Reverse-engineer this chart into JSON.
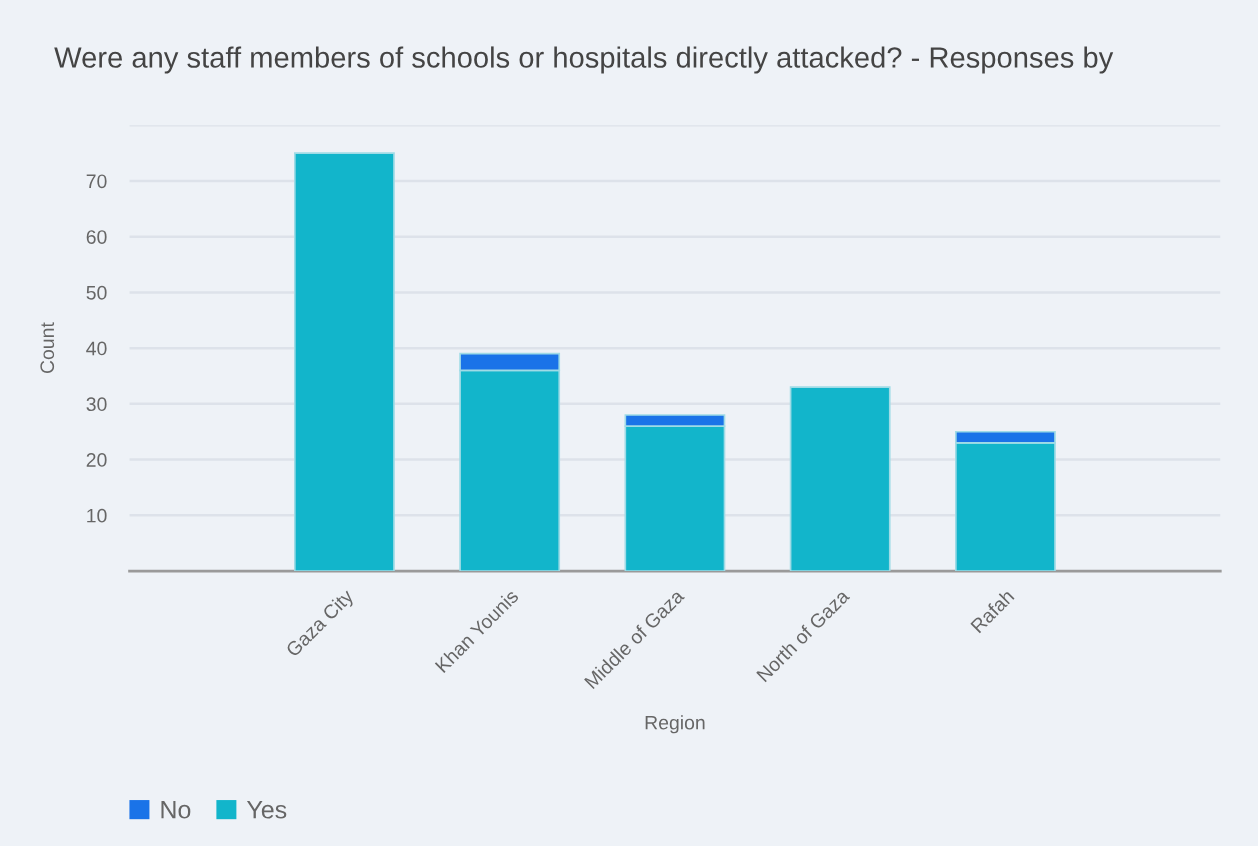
{
  "chart_data": {
    "type": "bar",
    "title": "Were any staff members of schools or hospitals directly attacked? - Responses by",
    "xlabel": "Region",
    "ylabel": "Count",
    "categories": [
      "Gaza City",
      "Khan Younis",
      "Middle of Gaza",
      "North of Gaza",
      "Rafah"
    ],
    "series": [
      {
        "name": "Yes",
        "color": "#12b5cb",
        "values": [
          75,
          36,
          26,
          33,
          23
        ]
      },
      {
        "name": "No",
        "color": "#1a73e8",
        "values": [
          null,
          3,
          2,
          null,
          2
        ]
      }
    ],
    "stacked": true,
    "ylim": [
      0,
      80
    ],
    "yticks": [
      10,
      20,
      30,
      40,
      50,
      60,
      70,
      {
        "value": 80,
        "label": null
      }
    ],
    "grid": "y",
    "legend": "bottom left"
  }
}
